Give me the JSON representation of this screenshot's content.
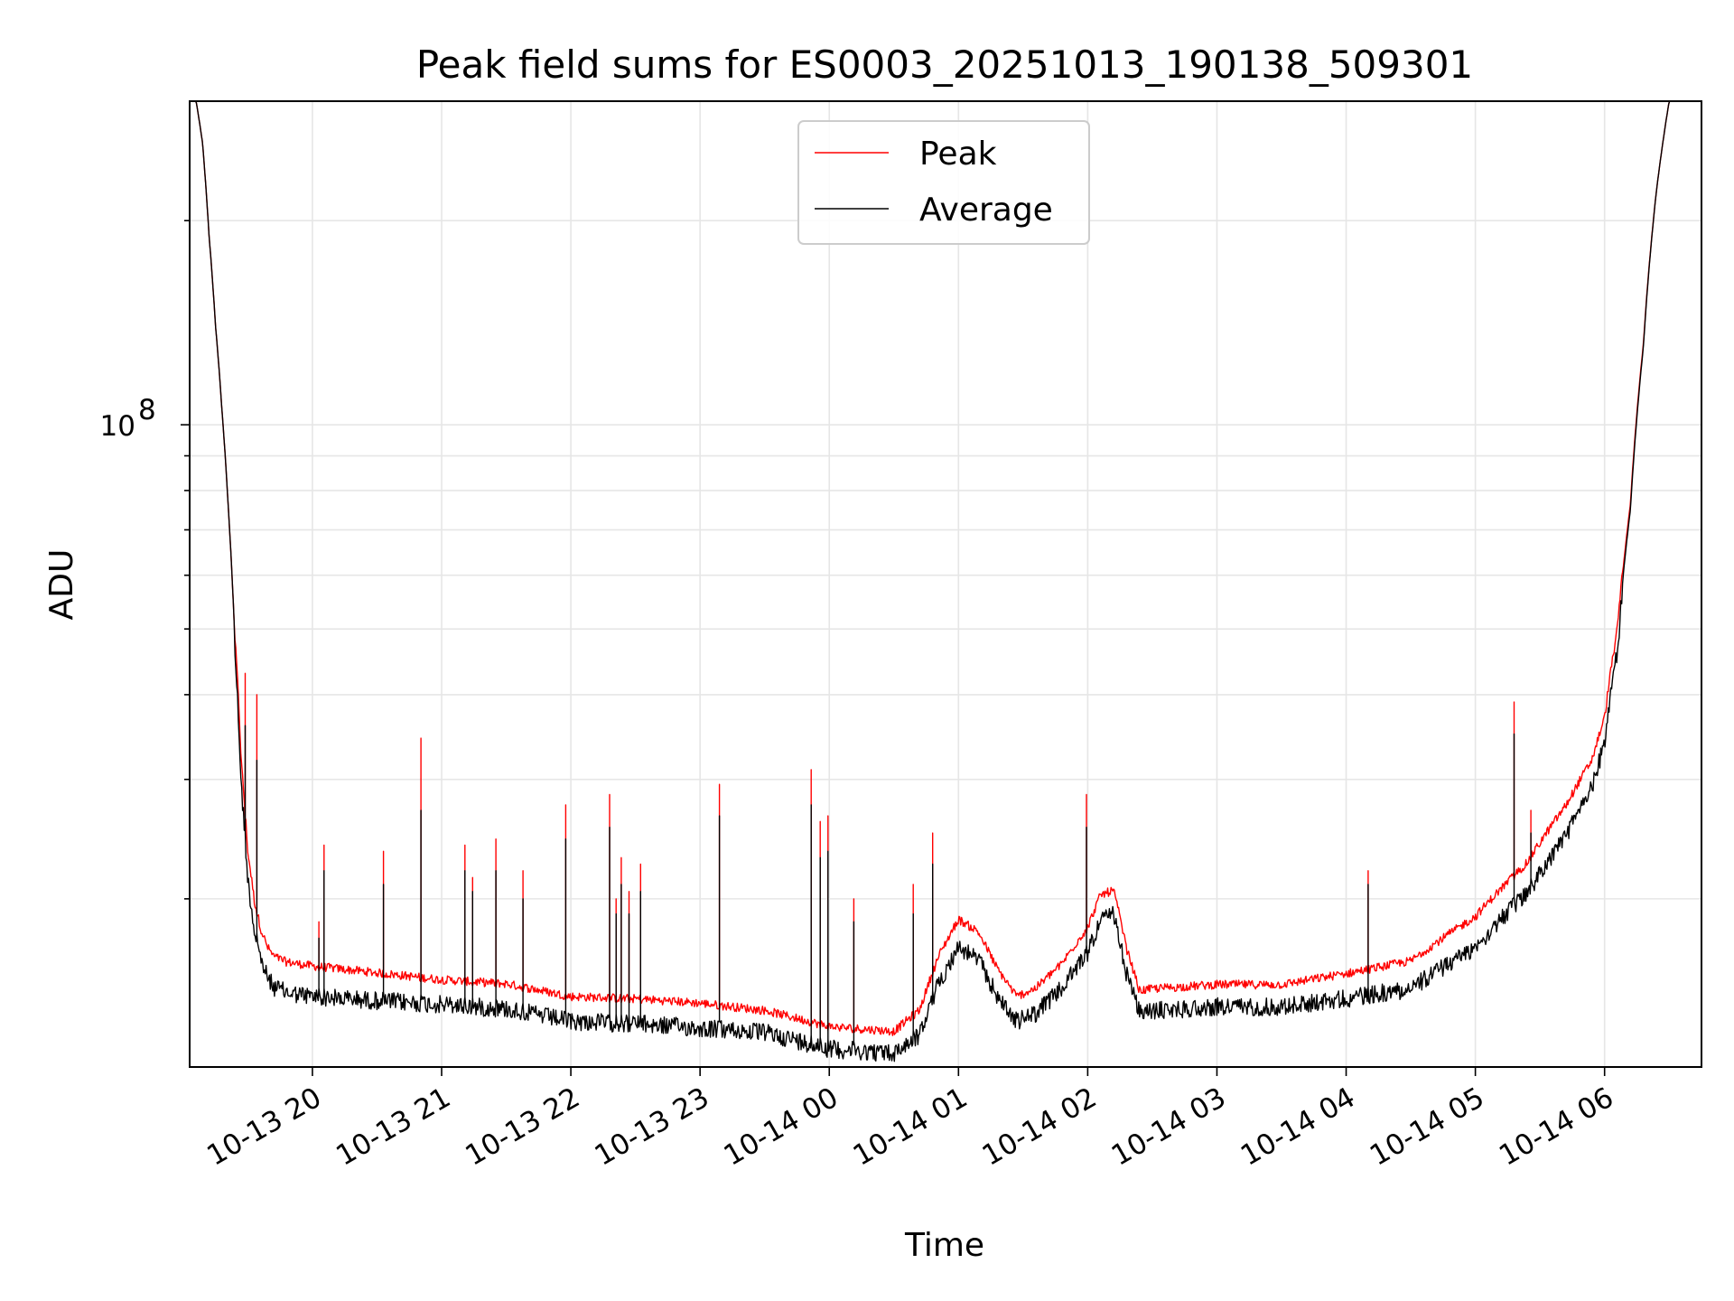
{
  "chart_data": {
    "type": "line",
    "title": "Peak field sums for ES0003_20251013_190138_509301",
    "xlabel": "Time",
    "ylabel": "ADU",
    "yscale": "log",
    "ylim": [
      11300000,
      300000000
    ],
    "xlim_hours": [
      -0.95,
      10.75
    ],
    "y_tick_label": {
      "base": "10",
      "exponent": "8",
      "value": 100000000
    },
    "y_minor_ticks": [
      20000000,
      30000000,
      40000000,
      50000000,
      60000000,
      70000000,
      80000000,
      90000000,
      200000000
    ],
    "x_tick_labels": [
      "10-13 20",
      "10-13 21",
      "10-13 22",
      "10-13 23",
      "10-14 00",
      "10-14 01",
      "10-14 02",
      "10-14 03",
      "10-14 04",
      "10-14 05",
      "10-14 06"
    ],
    "x_tick_hours": [
      0,
      1,
      2,
      3,
      4,
      5,
      6,
      7,
      8,
      9,
      10
    ],
    "x_unit_note": "hours after 10-13 20:00",
    "legend": {
      "location": "upper center",
      "entries": [
        "Peak",
        "Average"
      ]
    },
    "grid": true,
    "series": [
      {
        "name": "Peak",
        "color": "#ff0000"
      },
      {
        "name": "Average",
        "color": "#000000"
      }
    ],
    "baseline": {
      "x": [
        -0.95,
        -0.9,
        -0.85,
        -0.8,
        -0.75,
        -0.7,
        -0.65,
        -0.6,
        -0.55,
        -0.5,
        -0.45,
        -0.4,
        -0.35,
        -0.3,
        -0.2,
        0.0,
        0.5,
        1.0,
        1.5,
        2.0,
        2.5,
        3.0,
        3.5,
        4.0,
        4.5,
        4.7,
        4.85,
        5.0,
        5.15,
        5.3,
        5.45,
        5.6,
        5.8,
        6.0,
        6.1,
        6.2,
        6.3,
        6.4,
        6.5,
        7.0,
        7.5,
        8.0,
        8.5,
        9.0,
        9.4,
        9.7,
        9.9,
        10.0,
        10.1,
        10.2,
        10.3,
        10.4,
        10.5,
        10.6,
        10.75
      ],
      "avg": [
        300000000,
        300000000,
        260000000,
        190000000,
        140000000,
        105000000,
        75000000,
        48000000,
        30000000,
        22000000,
        18500000,
        16800000,
        15800000,
        15300000,
        15000000,
        14800000,
        14600000,
        14400000,
        14200000,
        13600000,
        13500000,
        13300000,
        13100000,
        12400000,
        12200000,
        13000000,
        15500000,
        17500000,
        16800000,
        14800000,
        13600000,
        14000000,
        15200000,
        17200000,
        19200000,
        19500000,
        16000000,
        14000000,
        14100000,
        14300000,
        14300000,
        14700000,
        15200000,
        17500000,
        21000000,
        25500000,
        30000000,
        35000000,
        48000000,
        75000000,
        130000000,
        220000000,
        300000000,
        300000000,
        300000000
      ],
      "peak_offset": [
        1.0,
        1.0,
        1.0,
        1.0,
        1.0,
        1.0,
        1.0,
        1.0,
        1.04,
        1.05,
        1.06,
        1.06,
        1.06,
        1.06,
        1.06,
        1.06,
        1.05,
        1.04,
        1.04,
        1.04,
        1.04,
        1.04,
        1.03,
        1.03,
        1.03,
        1.04,
        1.05,
        1.05,
        1.05,
        1.05,
        1.04,
        1.04,
        1.04,
        1.04,
        1.04,
        1.04,
        1.04,
        1.03,
        1.03,
        1.03,
        1.03,
        1.04,
        1.05,
        1.06,
        1.06,
        1.06,
        1.05,
        1.04,
        1.03,
        1.02,
        1.01,
        1.0,
        1.0,
        1.0,
        1.0
      ]
    },
    "spikes": [
      {
        "x": -0.52,
        "peak": 43000000,
        "avg": 36000000
      },
      {
        "x": -0.43,
        "peak": 40000000,
        "avg": 32000000
      },
      {
        "x": 0.05,
        "peak": 18500000,
        "avg": 17500000
      },
      {
        "x": 0.09,
        "peak": 24000000,
        "avg": 22000000
      },
      {
        "x": 0.55,
        "peak": 23500000,
        "avg": 21000000
      },
      {
        "x": 0.84,
        "peak": 34500000,
        "avg": 27000000
      },
      {
        "x": 1.18,
        "peak": 24000000,
        "avg": 22000000
      },
      {
        "x": 1.24,
        "peak": 21500000,
        "avg": 20500000
      },
      {
        "x": 1.42,
        "peak": 24500000,
        "avg": 22000000
      },
      {
        "x": 1.63,
        "peak": 22000000,
        "avg": 20000000
      },
      {
        "x": 1.96,
        "peak": 27500000,
        "avg": 24500000
      },
      {
        "x": 2.3,
        "peak": 28500000,
        "avg": 25500000
      },
      {
        "x": 2.35,
        "peak": 20000000,
        "avg": 19000000
      },
      {
        "x": 2.39,
        "peak": 23000000,
        "avg": 21000000
      },
      {
        "x": 2.45,
        "peak": 20500000,
        "avg": 19000000
      },
      {
        "x": 2.54,
        "peak": 22500000,
        "avg": 20500000
      },
      {
        "x": 3.15,
        "peak": 29500000,
        "avg": 26500000
      },
      {
        "x": 3.86,
        "peak": 31000000,
        "avg": 27500000
      },
      {
        "x": 3.93,
        "peak": 26000000,
        "avg": 23000000
      },
      {
        "x": 3.99,
        "peak": 26500000,
        "avg": 23500000
      },
      {
        "x": 4.19,
        "peak": 20000000,
        "avg": 18500000
      },
      {
        "x": 4.65,
        "peak": 21000000,
        "avg": 19000000
      },
      {
        "x": 4.8,
        "peak": 25000000,
        "avg": 22500000
      },
      {
        "x": 5.99,
        "peak": 28500000,
        "avg": 25500000
      },
      {
        "x": 8.17,
        "peak": 22000000,
        "avg": 21000000
      },
      {
        "x": 9.3,
        "peak": 39000000,
        "avg": 35000000
      },
      {
        "x": 9.43,
        "peak": 27000000,
        "avg": 25000000
      }
    ]
  }
}
